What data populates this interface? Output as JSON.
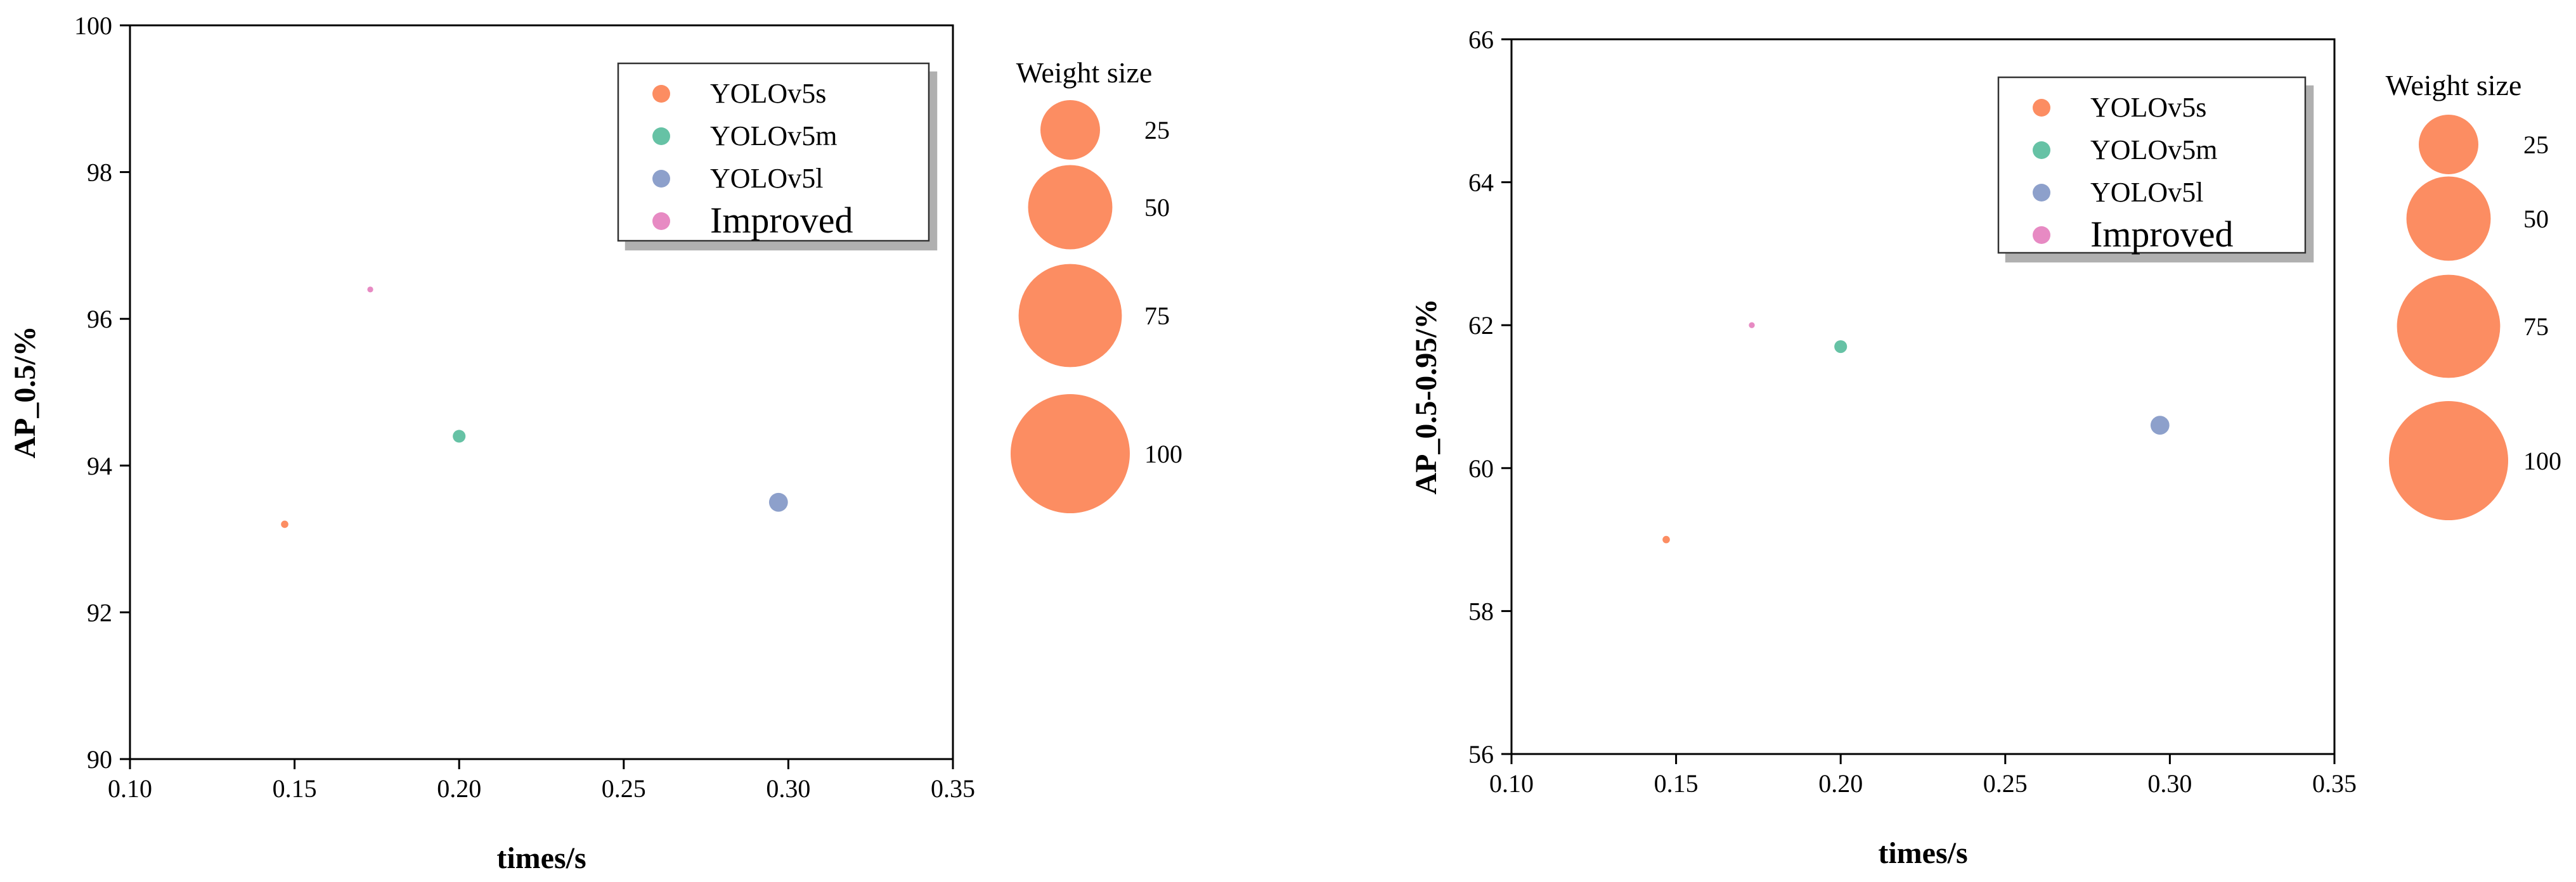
{
  "figure": {
    "charts": [
      {
        "chart_data": {
          "type": "scatter",
          "subtype": "bubble",
          "title": "",
          "xlabel": "times/s",
          "ylabel": "AP_0.5/%",
          "xlim": [
            0.1,
            0.35
          ],
          "ylim": [
            90,
            100
          ],
          "x_ticks": [
            "0.10",
            "0.15",
            "0.20",
            "0.25",
            "0.30",
            "0.35"
          ],
          "y_ticks": [
            "90",
            "92",
            "94",
            "96",
            "98",
            "100"
          ],
          "grid": false,
          "legend_position": "top-right",
          "series": [
            {
              "name": "YOLOv5s",
              "color": "#FC8D62",
              "x": 0.147,
              "y": 93.2,
              "size": 14
            },
            {
              "name": "YOLOv5m",
              "color": "#66C2A5",
              "x": 0.2,
              "y": 94.4,
              "size": 42
            },
            {
              "name": "YOLOv5l",
              "color": "#8DA0CB",
              "x": 0.297,
              "y": 93.5,
              "size": 92
            },
            {
              "name": "Improved",
              "color": "#E78AC3",
              "x": 0.173,
              "y": 96.4,
              "size": 9
            }
          ],
          "size_legend": {
            "title": "Weight size",
            "color": "#FC8D62",
            "entries": [
              {
                "label": "25",
                "value": 25
              },
              {
                "label": "50",
                "value": 50
              },
              {
                "label": "75",
                "value": 75
              },
              {
                "label": "100",
                "value": 100
              }
            ]
          }
        }
      },
      {
        "chart_data": {
          "type": "scatter",
          "subtype": "bubble",
          "title": "",
          "xlabel": "times/s",
          "ylabel": "AP_0.5-0.95/%",
          "xlim": [
            0.1,
            0.35
          ],
          "ylim": [
            56,
            66
          ],
          "x_ticks": [
            "0.10",
            "0.15",
            "0.20",
            "0.25",
            "0.30",
            "0.35"
          ],
          "y_ticks": [
            "56",
            "58",
            "60",
            "62",
            "64",
            "66"
          ],
          "grid": false,
          "legend_position": "top-right",
          "series": [
            {
              "name": "YOLOv5s",
              "color": "#FC8D62",
              "x": 0.147,
              "y": 59.0,
              "size": 14
            },
            {
              "name": "YOLOv5m",
              "color": "#66C2A5",
              "x": 0.2,
              "y": 61.7,
              "size": 42
            },
            {
              "name": "YOLOv5l",
              "color": "#8DA0CB",
              "x": 0.297,
              "y": 60.6,
              "size": 92
            },
            {
              "name": "Improved",
              "color": "#E78AC3",
              "x": 0.173,
              "y": 62.0,
              "size": 9
            }
          ],
          "size_legend": {
            "title": "Weight size",
            "color": "#FC8D62",
            "entries": [
              {
                "label": "25",
                "value": 25
              },
              {
                "label": "50",
                "value": 50
              },
              {
                "label": "75",
                "value": 75
              },
              {
                "label": "100",
                "value": 100
              }
            ]
          }
        }
      }
    ]
  }
}
